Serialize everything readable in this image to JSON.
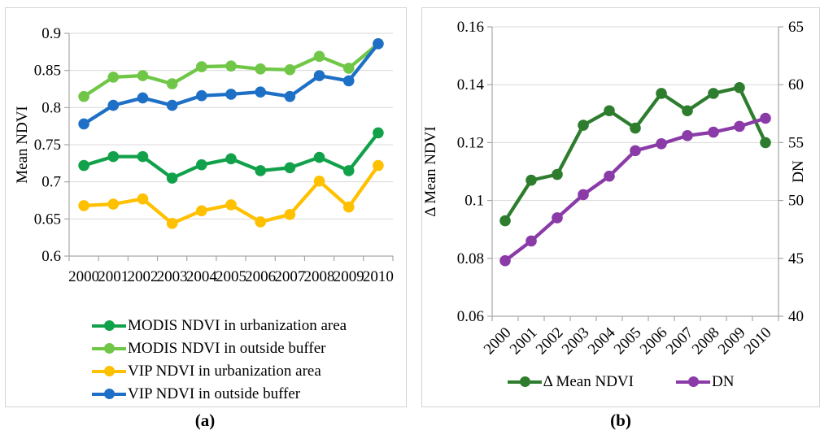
{
  "style": {
    "background_color": "#ffffff",
    "panel_border_color": "#d4d4d4",
    "gridline_color": "#d9d9d9",
    "axis_color": "#a6a6a6",
    "text_color": "#000000"
  },
  "figure": {
    "caption_a": "(a)",
    "caption_b": "(b)"
  },
  "chart_data": [
    {
      "type": "line",
      "title": "",
      "xlabel": "",
      "ylabel": "Mean NDVI",
      "categories": [
        "2000",
        "2001",
        "2002",
        "2003",
        "2004",
        "2005",
        "2006",
        "2007",
        "2008",
        "2009",
        "2010"
      ],
      "ylim": [
        0.6,
        0.9
      ],
      "yticks": [
        "0.9",
        "0.85",
        "0.8",
        "0.75",
        "0.7",
        "0.65",
        "0.6"
      ],
      "grid": true,
      "legend_position": "bottom-left",
      "series": [
        {
          "name": "MODIS NDVI in urbanization area",
          "color": "#12A14B",
          "values": [
            0.722,
            0.734,
            0.734,
            0.705,
            0.723,
            0.731,
            0.715,
            0.719,
            0.733,
            0.715,
            0.766
          ]
        },
        {
          "name": "MODIS NDVI in outside buffer",
          "color": "#70C747",
          "values": [
            0.815,
            0.841,
            0.843,
            0.832,
            0.855,
            0.856,
            0.852,
            0.851,
            0.869,
            0.853,
            0.886
          ]
        },
        {
          "name": "VIP NDVI in urbanization area",
          "color": "#FFC000",
          "values": [
            0.668,
            0.67,
            0.677,
            0.644,
            0.661,
            0.669,
            0.646,
            0.656,
            0.701,
            0.666,
            0.722
          ]
        },
        {
          "name": "VIP NDVI in outside buffer",
          "color": "#1E70C6",
          "values": [
            0.778,
            0.803,
            0.813,
            0.803,
            0.816,
            0.818,
            0.821,
            0.815,
            0.843,
            0.836,
            0.886
          ]
        }
      ]
    },
    {
      "type": "line",
      "title": "",
      "xlabel": "",
      "ylabel": "Δ Mean NDVI",
      "ylabel_right": "DN",
      "categories": [
        "2000",
        "2001",
        "2002",
        "2003",
        "2004",
        "2005",
        "2006",
        "2007",
        "2008",
        "2009",
        "2010"
      ],
      "ylim": [
        0.06,
        0.16
      ],
      "yticks": [
        "0.16",
        "0.14",
        "0.12",
        "0.1",
        "0.08",
        "0.06"
      ],
      "ylim_right": [
        40,
        65
      ],
      "yticks_right": [
        "65",
        "60",
        "55",
        "50",
        "45",
        "40"
      ],
      "grid": true,
      "legend_position": "bottom-center",
      "series": [
        {
          "name": "Δ Mean NDVI",
          "axis": "left",
          "color": "#2E7D2E",
          "values": [
            0.093,
            0.107,
            0.109,
            0.126,
            0.131,
            0.125,
            0.137,
            0.131,
            0.137,
            0.139,
            0.12
          ]
        },
        {
          "name": "DN",
          "axis": "right",
          "color": "#8A3BA8",
          "values": [
            44.8,
            46.5,
            48.5,
            50.5,
            52.1,
            54.3,
            54.9,
            55.6,
            55.9,
            56.4,
            57.1
          ]
        }
      ]
    }
  ]
}
